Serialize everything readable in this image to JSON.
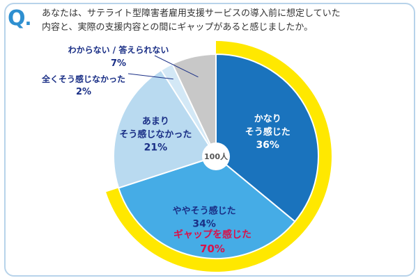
{
  "question": {
    "mark": "Q",
    "mark_dot": ".",
    "line1": "あなたは、サテライト型障害者雇用支援サービスの導入前に想定していた",
    "line2": "内容と、実際の支援内容との間にギャップがあると感じましたか。"
  },
  "colors": {
    "frame": "#b7d3ea",
    "accent": "#2e8fd0",
    "label_text": "#1a2f86",
    "highlight_text": "#d8124a",
    "outer_gap": "#ffe800",
    "outer_rest": "#ffffff",
    "quite": "#1a73bd",
    "somewhat": "#45ace6",
    "not_much": "#b9daf0",
    "not_at_all": "#d3e8f6",
    "dont_know": "#c8c8c8"
  },
  "chart_data": {
    "type": "pie",
    "center_label": "100人",
    "inner": [
      {
        "key": "quite",
        "label_lines": [
          "かなり",
          "そう感じた"
        ],
        "value": 36,
        "value_label": "36%"
      },
      {
        "key": "somewhat",
        "label_lines": [
          "ややそう感じた"
        ],
        "value": 34,
        "value_label": "34%"
      },
      {
        "key": "not_much",
        "label_lines": [
          "あまり",
          "そう感じなかった"
        ],
        "value": 21,
        "value_label": "21%"
      },
      {
        "key": "not_at_all",
        "label_lines": [
          "全くそう感じなかった"
        ],
        "value": 2,
        "value_label": "2%"
      },
      {
        "key": "dont_know",
        "label_lines": [
          "わからない / 答えられない"
        ],
        "value": 7,
        "value_label": "7%"
      }
    ],
    "outer": [
      {
        "key": "outer_gap",
        "label_lines": [
          "ギャップを感じた"
        ],
        "value": 70,
        "value_label": "70%"
      },
      {
        "key": "outer_rest",
        "value": 30
      }
    ]
  }
}
